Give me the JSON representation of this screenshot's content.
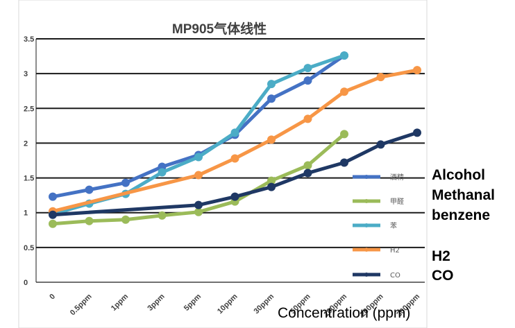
{
  "chart_data": {
    "type": "line",
    "title": "MP905气体线性",
    "xlabel": "Concentration (ppm)",
    "ylabel": "",
    "categories": [
      "0",
      "0.5ppm",
      "1ppm",
      "3ppm",
      "5ppm",
      "10ppm",
      "30ppm",
      "50ppm",
      "100ppm",
      "200ppm",
      "300ppm"
    ],
    "ylim": [
      0,
      3.5
    ],
    "yticks": [
      "0",
      "0.5",
      "1",
      "1.5",
      "2",
      "2.5",
      "3",
      "3.5"
    ],
    "grid": true,
    "legend_position": "right",
    "series": [
      {
        "name": "酒精",
        "color": "#4472C4",
        "values": [
          1.23,
          1.33,
          1.43,
          1.66,
          1.83,
          2.12,
          2.64,
          2.9,
          3.26,
          null,
          null
        ]
      },
      {
        "name": "甲醛",
        "color": "#9BBB59",
        "values": [
          0.84,
          0.88,
          0.9,
          0.96,
          1.01,
          1.16,
          1.46,
          1.68,
          2.13,
          null,
          null
        ]
      },
      {
        "name": "苯",
        "color": "#4BACC6",
        "values": [
          0.98,
          1.13,
          1.27,
          1.58,
          1.8,
          2.15,
          2.85,
          3.08,
          3.26,
          null,
          null
        ]
      },
      {
        "name": "H2",
        "color": "#F79646",
        "values": [
          1.02,
          null,
          null,
          null,
          1.54,
          1.78,
          2.05,
          2.35,
          2.74,
          2.95,
          3.05
        ]
      },
      {
        "name": "CO",
        "color": "#1F3864",
        "values": [
          0.97,
          null,
          null,
          null,
          1.11,
          1.23,
          1.37,
          1.57,
          1.72,
          1.98,
          2.15
        ]
      }
    ]
  },
  "annotations": {
    "alcohol": "Alcohol",
    "methanal": "Methanal",
    "benzene": "benzene",
    "h2": "H2",
    "co": "CO",
    "x_axis_title": "Concentration (ppm)"
  }
}
